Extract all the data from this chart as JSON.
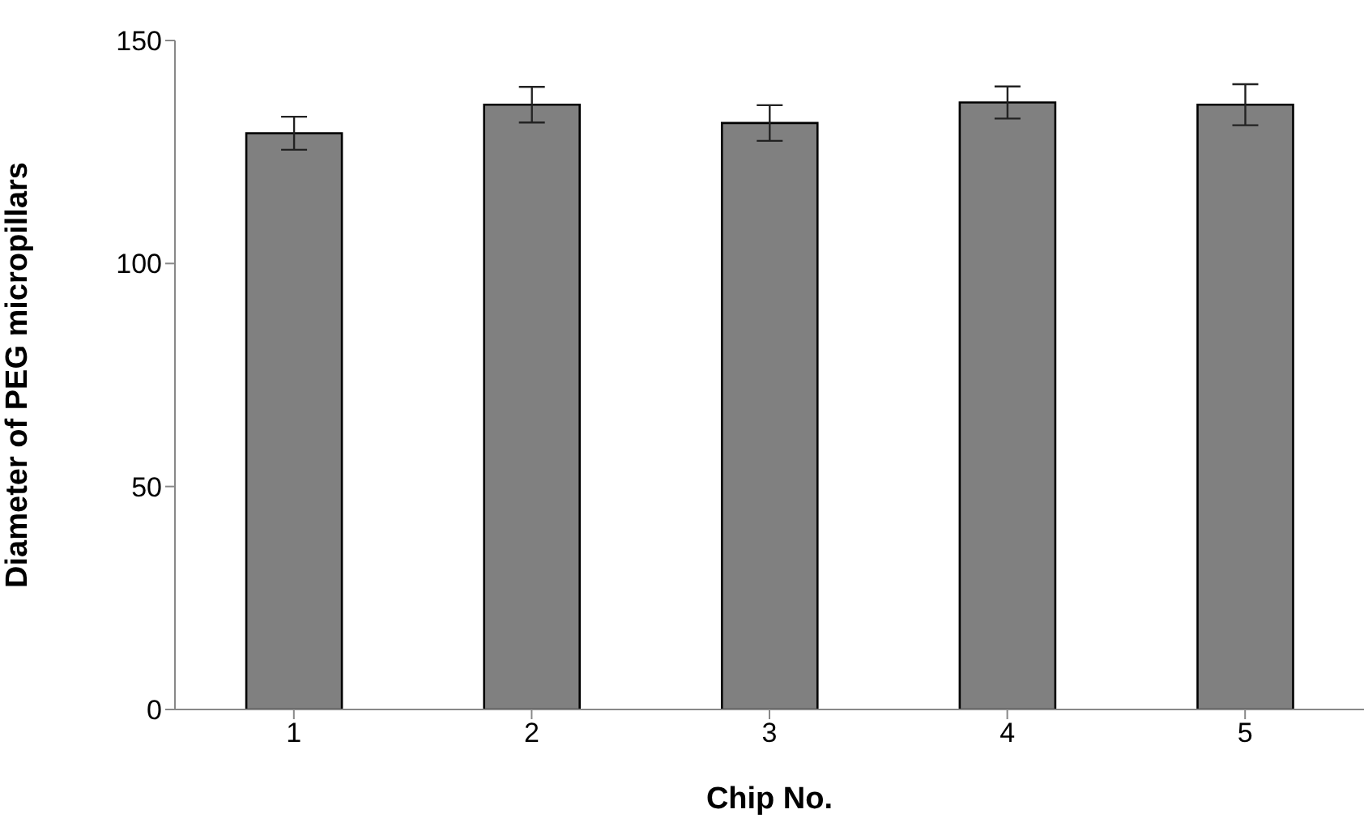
{
  "chart_data": {
    "type": "bar",
    "xlabel": "Chip No.",
    "ylabel": "Diameter of PEG micropillars",
    "categories": [
      "1",
      "2",
      "3",
      "4",
      "5"
    ],
    "values": [
      129.2,
      135.6,
      131.5,
      136.1,
      135.6
    ],
    "errors": [
      3.7,
      4,
      4,
      3.6,
      4.6
    ],
    "color": "#808080",
    "ylim": [
      0,
      150
    ],
    "yticks": [
      0,
      50,
      100,
      150
    ],
    "grid": false
  }
}
